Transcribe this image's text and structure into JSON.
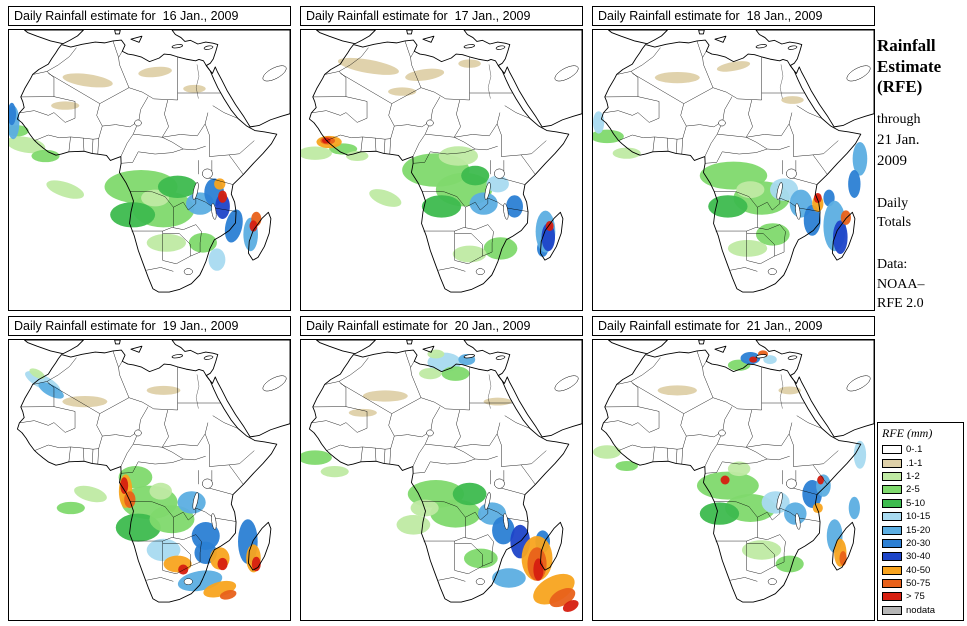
{
  "panels": [
    {
      "title": "Daily Rainfall estimate for  16 Jan., 2009",
      "blobs": [
        [
          28,
          18,
          9,
          2.2,
          8,
          1
        ],
        [
          52,
          15,
          6,
          1.8,
          -6,
          1
        ],
        [
          66,
          21,
          4,
          1.4,
          0,
          1
        ],
        [
          20,
          27,
          5,
          1.5,
          0,
          1
        ],
        [
          6,
          41,
          7,
          2.8,
          10,
          2
        ],
        [
          3,
          36,
          4,
          2,
          0,
          3
        ],
        [
          13,
          45,
          5,
          2.2,
          0,
          3
        ],
        [
          20,
          57,
          7,
          2.6,
          18,
          2
        ],
        [
          47,
          56,
          13,
          6,
          0,
          3
        ],
        [
          55,
          64,
          11,
          6.5,
          0,
          3
        ],
        [
          52,
          60,
          5,
          3,
          0,
          2
        ],
        [
          44,
          66,
          8,
          4.5,
          0,
          4
        ],
        [
          60,
          56,
          7,
          4,
          0,
          4
        ],
        [
          69,
          76,
          5,
          3.5,
          0,
          3
        ],
        [
          56,
          76,
          7,
          3.2,
          0,
          2
        ],
        [
          74,
          82,
          3,
          4,
          0,
          5
        ],
        [
          1.5,
          33,
          2.2,
          6,
          0,
          6
        ],
        [
          1,
          30,
          1.5,
          4,
          0,
          7
        ],
        [
          68,
          62,
          5,
          4,
          0,
          6
        ],
        [
          73,
          58,
          3.5,
          5,
          0,
          7
        ],
        [
          80,
          70,
          3,
          6,
          12,
          7
        ],
        [
          86,
          73,
          2.6,
          6,
          0,
          6
        ],
        [
          76,
          63,
          2.6,
          4.5,
          0,
          8
        ],
        [
          75,
          55,
          2,
          2,
          0,
          9
        ],
        [
          88,
          67.5,
          1.8,
          2.6,
          0,
          10
        ],
        [
          76,
          59.5,
          1.6,
          2.2,
          0,
          11
        ],
        [
          87,
          70,
          1.4,
          2,
          0,
          11
        ]
      ]
    },
    {
      "title": "Daily Rainfall estimate for  17 Jan., 2009",
      "blobs": [
        [
          24,
          13,
          11,
          2.4,
          10,
          1
        ],
        [
          44,
          16,
          7,
          2,
          -8,
          1
        ],
        [
          60,
          12,
          4,
          1.5,
          0,
          1
        ],
        [
          36,
          22,
          5,
          1.5,
          0,
          1
        ],
        [
          15,
          42.5,
          5,
          2,
          0,
          3
        ],
        [
          5,
          44,
          6,
          2.4,
          0,
          2
        ],
        [
          20,
          45,
          4,
          1.8,
          0,
          2
        ],
        [
          30,
          60,
          6,
          2.6,
          20,
          2
        ],
        [
          48,
          50,
          12,
          6,
          0,
          3
        ],
        [
          56,
          45,
          7,
          3.5,
          0,
          2
        ],
        [
          58,
          57,
          10,
          6,
          0,
          3
        ],
        [
          50,
          63,
          7,
          4,
          0,
          4
        ],
        [
          62,
          52,
          5,
          3.5,
          0,
          4
        ],
        [
          71,
          78,
          6,
          4,
          0,
          3
        ],
        [
          60,
          80,
          6,
          3,
          0,
          2
        ],
        [
          65,
          62,
          5,
          4,
          0,
          6
        ],
        [
          70,
          55,
          4,
          3,
          0,
          5
        ],
        [
          76,
          63,
          3,
          4,
          0,
          7
        ],
        [
          86,
          78,
          2,
          3,
          0,
          7
        ],
        [
          87,
          72,
          3.5,
          7.5,
          0,
          6
        ],
        [
          88,
          74,
          2.4,
          5,
          0,
          8
        ],
        [
          10,
          40,
          4.5,
          2.2,
          0,
          9
        ],
        [
          9.5,
          39.5,
          2.6,
          1.4,
          0,
          10
        ],
        [
          9,
          39.5,
          1.5,
          1,
          0,
          11
        ],
        [
          88.5,
          70,
          1.4,
          1.8,
          0,
          11
        ]
      ]
    },
    {
      "title": "Daily Rainfall estimate for  18 Jan., 2009",
      "blobs": [
        [
          30,
          17,
          8,
          2,
          0,
          1
        ],
        [
          50,
          13,
          6,
          1.6,
          -10,
          1
        ],
        [
          71,
          25,
          4,
          1.4,
          0,
          1
        ],
        [
          5,
          38,
          6,
          2.4,
          0,
          3
        ],
        [
          12,
          44,
          5,
          2,
          0,
          2
        ],
        [
          2,
          33,
          2,
          4,
          0,
          5
        ],
        [
          50,
          52,
          12,
          5,
          0,
          3
        ],
        [
          60,
          60,
          10,
          6,
          0,
          3
        ],
        [
          48,
          63,
          7,
          4,
          0,
          4
        ],
        [
          56,
          57,
          5,
          3,
          0,
          2
        ],
        [
          64,
          73,
          6,
          4,
          0,
          3
        ],
        [
          55,
          78,
          7,
          3,
          0,
          2
        ],
        [
          68,
          57,
          5,
          4,
          0,
          5
        ],
        [
          74,
          62,
          4,
          5,
          0,
          6
        ],
        [
          78,
          68,
          3,
          5.5,
          0,
          7
        ],
        [
          84,
          60,
          2,
          3,
          0,
          7
        ],
        [
          86,
          70,
          4,
          9,
          0,
          6
        ],
        [
          88,
          74,
          2.6,
          6,
          0,
          8
        ],
        [
          95,
          46,
          2.6,
          6,
          0,
          6
        ],
        [
          93,
          55,
          2.2,
          5,
          0,
          7
        ],
        [
          80,
          62,
          2,
          3,
          0,
          9
        ],
        [
          90,
          67,
          1.8,
          2.6,
          0,
          10
        ],
        [
          80,
          60,
          1.4,
          1.8,
          0,
          11
        ]
      ]
    },
    {
      "title": "Daily Rainfall estimate for  19 Jan., 2009",
      "blobs": [
        [
          27,
          22,
          8,
          2,
          0,
          1
        ],
        [
          55,
          18,
          6,
          1.6,
          0,
          1
        ],
        [
          12,
          15,
          7,
          2.4,
          28,
          5
        ],
        [
          15,
          18,
          5,
          2,
          28,
          6
        ],
        [
          10,
          12,
          3,
          1.4,
          28,
          2
        ],
        [
          45,
          49,
          6,
          4,
          0,
          3
        ],
        [
          50,
          58,
          10,
          6,
          0,
          3
        ],
        [
          46,
          67,
          8,
          5,
          0,
          4
        ],
        [
          58,
          64,
          8,
          5,
          0,
          3
        ],
        [
          54,
          54,
          4,
          3,
          0,
          2
        ],
        [
          29,
          55,
          6,
          2.6,
          15,
          2
        ],
        [
          22,
          60,
          5,
          2.2,
          0,
          3
        ],
        [
          65,
          58,
          5,
          4,
          0,
          6
        ],
        [
          70,
          70,
          5,
          5,
          0,
          7
        ],
        [
          55,
          75,
          6,
          4,
          0,
          5
        ],
        [
          70,
          76,
          4,
          4,
          0,
          7
        ],
        [
          68,
          86,
          8,
          3.5,
          -10,
          6
        ],
        [
          85,
          72,
          3.5,
          8,
          0,
          7
        ],
        [
          41.5,
          54,
          2.4,
          6,
          0,
          9
        ],
        [
          43,
          57,
          2,
          3,
          0,
          10
        ],
        [
          41,
          52,
          1.4,
          3,
          0,
          11
        ],
        [
          60,
          80,
          5,
          3,
          0,
          9
        ],
        [
          62,
          82,
          1.8,
          1.8,
          0,
          11
        ],
        [
          75,
          78,
          3.5,
          4,
          0,
          9
        ],
        [
          76,
          80,
          1.8,
          2.2,
          0,
          11
        ],
        [
          87,
          78,
          2.6,
          5,
          0,
          9
        ],
        [
          88,
          80,
          1.6,
          2.6,
          0,
          11
        ],
        [
          75,
          89,
          6,
          2.6,
          -15,
          9
        ],
        [
          78,
          91,
          3,
          1.6,
          -15,
          10
        ]
      ]
    },
    {
      "title": "Daily Rainfall estimate for  20 Jan., 2009",
      "blobs": [
        [
          30,
          20,
          8,
          2,
          0,
          1
        ],
        [
          70,
          22,
          5,
          1.4,
          0,
          1
        ],
        [
          22,
          26,
          5,
          1.4,
          0,
          1
        ],
        [
          51,
          8,
          6,
          3.5,
          0,
          5
        ],
        [
          55,
          12,
          5,
          2.6,
          0,
          3
        ],
        [
          46,
          12,
          4,
          2,
          0,
          2
        ],
        [
          59,
          7,
          3,
          2,
          0,
          6
        ],
        [
          48,
          5,
          3,
          1.6,
          0,
          2
        ],
        [
          5,
          42,
          6,
          2.6,
          0,
          3
        ],
        [
          12,
          47,
          5,
          2,
          0,
          2
        ],
        [
          48,
          55,
          10,
          5,
          0,
          3
        ],
        [
          55,
          62,
          9,
          5,
          0,
          3
        ],
        [
          60,
          55,
          6,
          4,
          0,
          4
        ],
        [
          44,
          60,
          5,
          3,
          0,
          2
        ],
        [
          40,
          66,
          6,
          3.5,
          0,
          2
        ],
        [
          64,
          78,
          6,
          3.5,
          0,
          3
        ],
        [
          74,
          85,
          6,
          3.5,
          0,
          6
        ],
        [
          68,
          62,
          5,
          4,
          0,
          6
        ],
        [
          72,
          68,
          4,
          5,
          0,
          7
        ],
        [
          78,
          72,
          3.5,
          6,
          0,
          8
        ],
        [
          86,
          72,
          2.6,
          4,
          0,
          7
        ],
        [
          84,
          78,
          5.5,
          8,
          0,
          9
        ],
        [
          84,
          80,
          3.4,
          6,
          0,
          10
        ],
        [
          84.5,
          82,
          1.8,
          4,
          0,
          11
        ],
        [
          90,
          89,
          8,
          4.5,
          -28,
          9
        ],
        [
          93,
          92,
          5,
          2.8,
          -28,
          10
        ],
        [
          96,
          95,
          3,
          1.8,
          -28,
          11
        ]
      ]
    },
    {
      "title": "Daily Rainfall estimate for  21 Jan., 2009",
      "blobs": [
        [
          30,
          18,
          7,
          1.8,
          0,
          1
        ],
        [
          70,
          18,
          4,
          1.4,
          0,
          1
        ],
        [
          52,
          9,
          4,
          2,
          0,
          3
        ],
        [
          63,
          7,
          2.4,
          1.6,
          0,
          5
        ],
        [
          56,
          6.5,
          3.5,
          2.2,
          0,
          7
        ],
        [
          60.5,
          5,
          1.8,
          1.3,
          0,
          10
        ],
        [
          57,
          7,
          1.4,
          1.1,
          0,
          11
        ],
        [
          5,
          40,
          5,
          2.4,
          0,
          2
        ],
        [
          12,
          45,
          4,
          1.8,
          0,
          3
        ],
        [
          48,
          52,
          11,
          5,
          0,
          3
        ],
        [
          56,
          60,
          9,
          5,
          0,
          3
        ],
        [
          45,
          62,
          7,
          4,
          0,
          4
        ],
        [
          52,
          46,
          4,
          2.6,
          0,
          2
        ],
        [
          47,
          50,
          1.6,
          1.6,
          0,
          11
        ],
        [
          60,
          75,
          7,
          3.5,
          0,
          2
        ],
        [
          70,
          80,
          5,
          3,
          0,
          3
        ],
        [
          65,
          58,
          5,
          4,
          0,
          5
        ],
        [
          72,
          62,
          4,
          4,
          0,
          6
        ],
        [
          78,
          55,
          3.5,
          5,
          0,
          7
        ],
        [
          82,
          52,
          2.6,
          4,
          0,
          6
        ],
        [
          80,
          60,
          1.8,
          1.8,
          0,
          9
        ],
        [
          81,
          50,
          1.2,
          1.6,
          0,
          11
        ],
        [
          86,
          70,
          2.8,
          6,
          0,
          6
        ],
        [
          88,
          76,
          2.2,
          5,
          0,
          9
        ],
        [
          89,
          78,
          1.3,
          2.6,
          0,
          10
        ],
        [
          95,
          41,
          2.2,
          5,
          0,
          5
        ],
        [
          93,
          60,
          2,
          4,
          0,
          6
        ]
      ]
    }
  ],
  "sidebar": {
    "title_lines": [
      "Rainfall",
      "Estimate",
      "(RFE)"
    ],
    "through": "through",
    "date1": "21 Jan.",
    "date2": "2009",
    "totals1": "Daily",
    "totals2": "Totals",
    "data1": "Data:",
    "data2": "NOAA–",
    "data3": "RFE 2.0"
  },
  "legend": {
    "title": "RFE (mm)",
    "entries": [
      {
        "label": "0-.1",
        "color": "#ffffff"
      },
      {
        "label": ".1-1",
        "color": "#ded0a8"
      },
      {
        "label": "1-2",
        "color": "#bfeaa3"
      },
      {
        "label": "2-5",
        "color": "#7fd96d"
      },
      {
        "label": "5-10",
        "color": "#3dbb4e"
      },
      {
        "label": "10-15",
        "color": "#a8daf0"
      },
      {
        "label": "15-20",
        "color": "#5caee2"
      },
      {
        "label": "20-30",
        "color": "#2b7fd4"
      },
      {
        "label": "30-40",
        "color": "#1d45c8"
      },
      {
        "label": "40-50",
        "color": "#f8a41f"
      },
      {
        "label": "50-75",
        "color": "#e8611a"
      },
      {
        "label": "> 75",
        "color": "#d61f10"
      },
      {
        "label": "nodata",
        "color": "#b5b5b5"
      }
    ]
  }
}
